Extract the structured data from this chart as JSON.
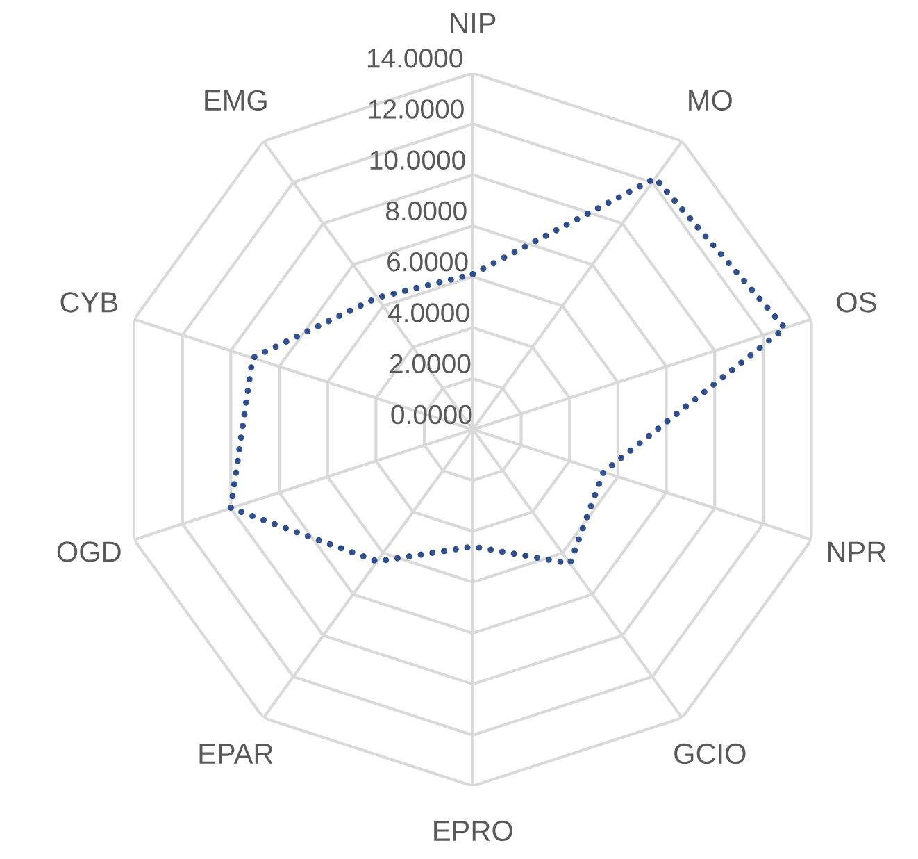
{
  "chart_data": {
    "type": "radar",
    "categories": [
      "NIP",
      "MO",
      "OS",
      "NPR",
      "GCIO",
      "EPRO",
      "EPAR",
      "OGD",
      "CYB",
      "EMG"
    ],
    "series": [
      {
        "color": "#2f4f8f",
        "values": [
          6.1,
          12.2,
          12.9,
          5.4,
          6.5,
          4.6,
          6.4,
          10.0,
          9.1,
          6.4
        ]
      }
    ],
    "ylim": [
      0,
      14
    ],
    "yticks": [
      {
        "value": 0,
        "label": "0.0000"
      },
      {
        "value": 2,
        "label": "2.0000"
      },
      {
        "value": 4,
        "label": "4.0000"
      },
      {
        "value": 6,
        "label": "6.0000"
      },
      {
        "value": 8,
        "label": "8.0000"
      },
      {
        "value": 10,
        "label": "10.0000"
      },
      {
        "value": 12,
        "label": "12.0000"
      },
      {
        "value": 14,
        "label": "14.0000"
      }
    ],
    "grid": true,
    "marker": "none",
    "line_style": "dotted"
  }
}
